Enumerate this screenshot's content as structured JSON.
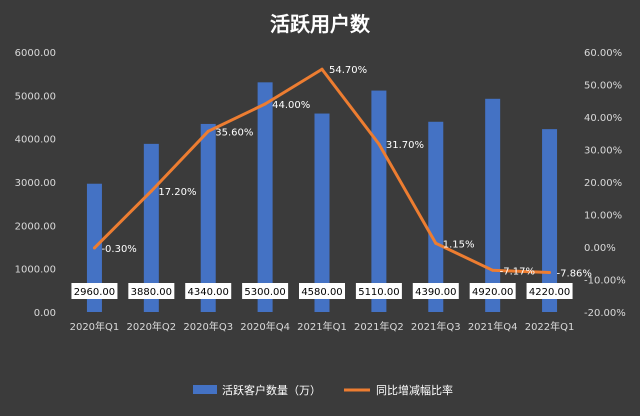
{
  "chart_data": {
    "type": "bar",
    "title": "活跃用户数",
    "categories": [
      "2020年Q1",
      "2020年Q2",
      "2020年Q3",
      "2020年Q4",
      "2021年Q1",
      "2021年Q2",
      "2021年Q3",
      "2021年Q4",
      "2022年Q1"
    ],
    "series": [
      {
        "name": "活跃客户数量（万）",
        "type": "bar",
        "axis": "left",
        "color": "#4472c4",
        "values": [
          2960.0,
          3880.0,
          4340.0,
          5300.0,
          4580.0,
          5110.0,
          4390.0,
          4920.0,
          4220.0
        ],
        "labels": [
          "2960.00",
          "3880.00",
          "4340.00",
          "5300.00",
          "4580.00",
          "5110.00",
          "4390.00",
          "4920.00",
          "4220.00"
        ]
      },
      {
        "name": "同比增减幅比率",
        "type": "line",
        "axis": "right",
        "color": "#ed7d31",
        "values": [
          -0.3,
          17.2,
          35.6,
          44.0,
          54.7,
          31.7,
          1.15,
          -7.17,
          -7.86
        ],
        "labels": [
          "-0.30%",
          "17.20%",
          "35.60%",
          "44.00%",
          "54.70%",
          "31.70%",
          "1.15%",
          "-7.17%",
          "-7.86%"
        ]
      }
    ],
    "y_left": {
      "min": 0,
      "max": 6000,
      "ticks": [
        0,
        1000,
        2000,
        3000,
        4000,
        5000,
        6000
      ],
      "tick_labels": [
        "0.00",
        "1000.00",
        "2000.00",
        "3000.00",
        "4000.00",
        "5000.00",
        "6000.00"
      ]
    },
    "y_right": {
      "min": -20,
      "max": 60,
      "ticks": [
        -20,
        -10,
        0,
        10,
        20,
        30,
        40,
        50,
        60
      ],
      "tick_labels": [
        "-20.00%",
        "-10.00%",
        "0.00%",
        "10.00%",
        "20.00%",
        "30.00%",
        "40.00%",
        "50.00%",
        "60.00%"
      ]
    },
    "grid": false,
    "legend_position": "bottom"
  },
  "colors": {
    "background": "#3b3b3b",
    "text": "#ffffff",
    "axis_text": "#d9d9d9",
    "bar": "#4472c4",
    "line": "#ed7d31",
    "label_box": "#ffffff",
    "label_box_text": "#000000"
  }
}
